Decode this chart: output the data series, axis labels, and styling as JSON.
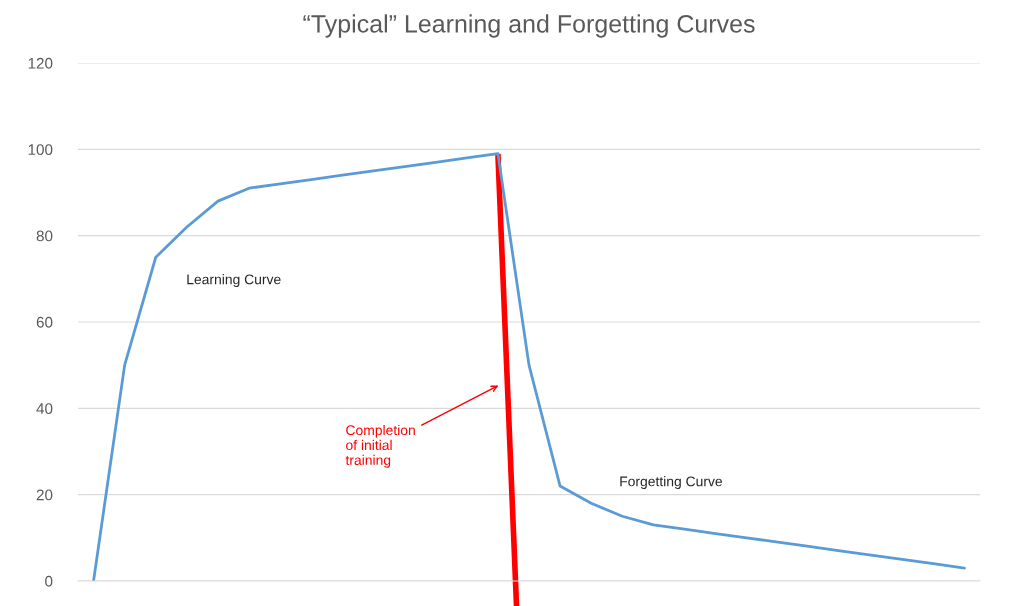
{
  "chart_data": {
    "type": "line",
    "title": "“Typical” Learning and Forgetting Curves",
    "categories": [
      null,
      null,
      null,
      null,
      null,
      null,
      null,
      null,
      null,
      null,
      null,
      null,
      null,
      null,
      null,
      null,
      null,
      null,
      null,
      null,
      null,
      null,
      null,
      null,
      null,
      null,
      null,
      null,
      null
    ],
    "series": [
      {
        "color": "#5b9bd5",
        "values": [
          0,
          50,
          75,
          82,
          88,
          91,
          92,
          93,
          94,
          95,
          96,
          97,
          98,
          99,
          50,
          22,
          18,
          15,
          13,
          12,
          11,
          10,
          9,
          8,
          7,
          6,
          5,
          4,
          3
        ]
      }
    ],
    "ylim": [
      0,
      120
    ],
    "yticks": [
      0,
      20,
      40,
      60,
      80,
      100,
      120
    ],
    "tick_labels": "y",
    "grid": "y",
    "annotations": [
      "Learning Curve",
      "Forgetting Curve",
      "Completion\nof initial\ntraining"
    ]
  }
}
